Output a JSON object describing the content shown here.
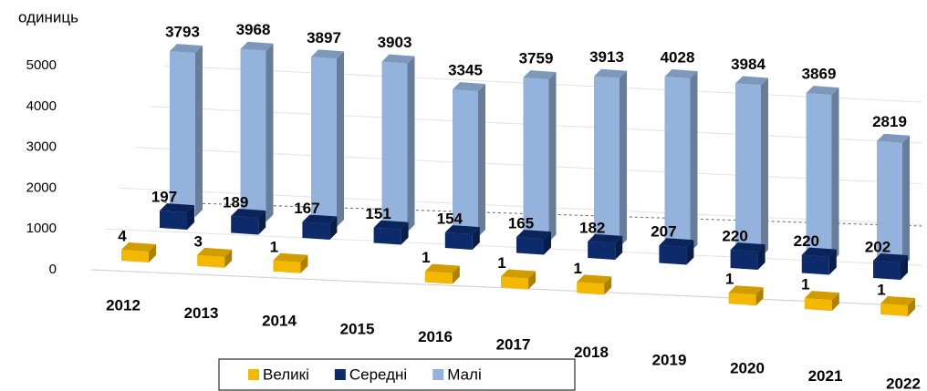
{
  "chart_data": {
    "type": "bar3d",
    "y_label": "одиниць",
    "categories": [
      "2012",
      "2013",
      "2014",
      "2015",
      "2016",
      "2017",
      "2018",
      "2019",
      "2020",
      "2021",
      "2022"
    ],
    "series": [
      {
        "name": "Великі",
        "color": "#f5b800",
        "values": [
          4,
          3,
          1,
          null,
          1,
          1,
          1,
          null,
          1,
          1,
          1
        ]
      },
      {
        "name": "Середні",
        "color": "#0d2a6b",
        "values": [
          197,
          189,
          167,
          151,
          154,
          165,
          182,
          207,
          220,
          220,
          202
        ]
      },
      {
        "name": "Малі",
        "color": "#94b3dc",
        "values": [
          3793,
          3968,
          3897,
          3903,
          3345,
          3759,
          3913,
          4028,
          3984,
          3869,
          2819
        ]
      }
    ],
    "ylim": [
      0,
      5000
    ],
    "yticks": [
      0,
      1000,
      2000,
      3000,
      4000,
      5000
    ],
    "grid": true,
    "legend": "bottom"
  }
}
